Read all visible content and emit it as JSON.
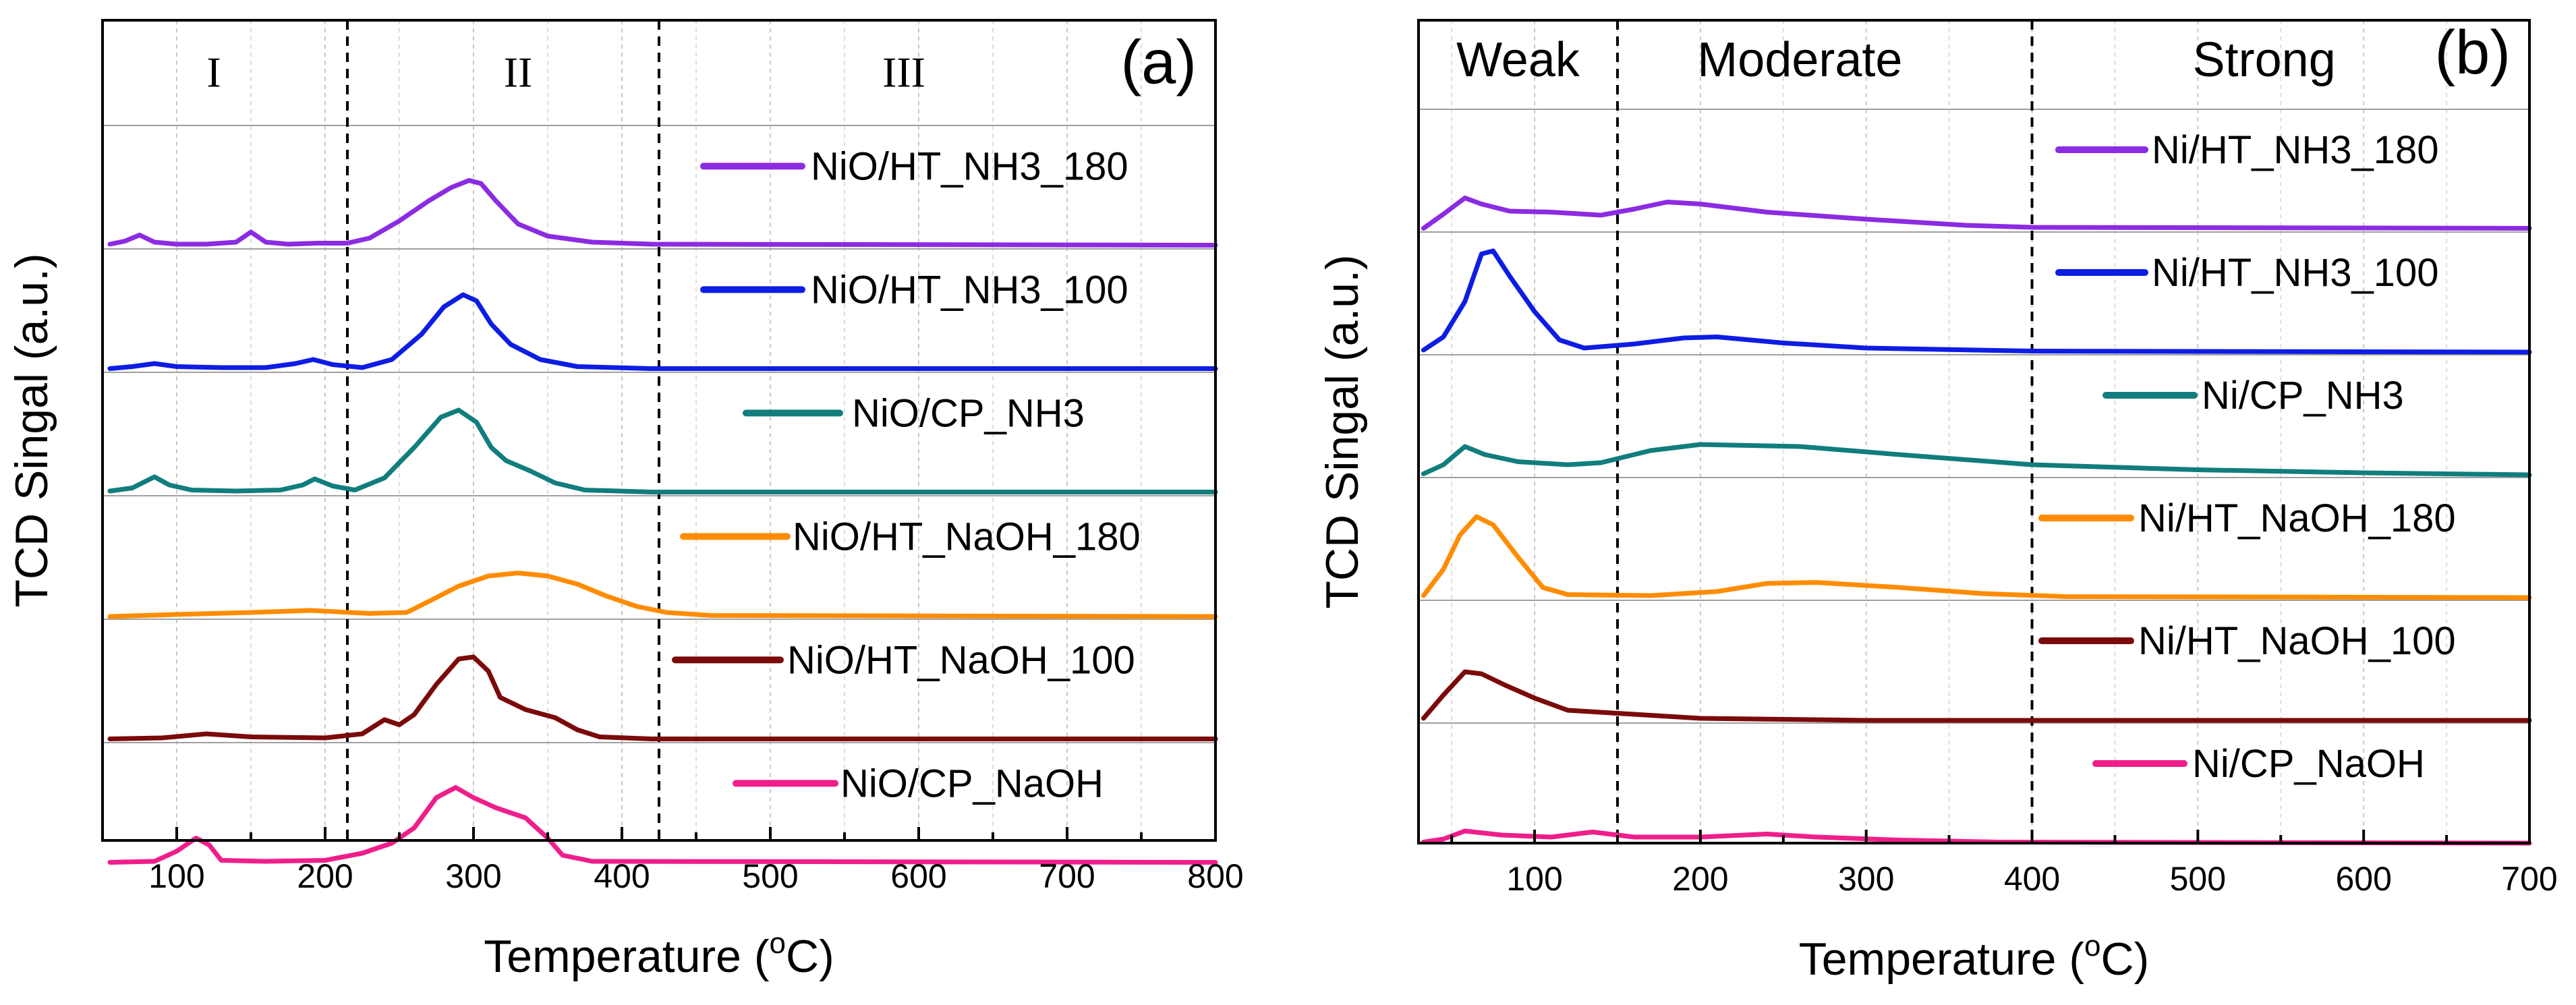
{
  "chart_data": [
    {
      "type": "line",
      "panel_label": "(a)",
      "xlabel_main": "Temperature (",
      "xlabel_sup": "o",
      "xlabel_tail": "C)",
      "ylabel": "TCD Singal (a.u.)",
      "xlim": [
        50,
        800
      ],
      "xticks": [
        100,
        200,
        300,
        400,
        500,
        600,
        700,
        800
      ],
      "grid": true,
      "region_lines": [
        215,
        425
      ],
      "regions": [
        {
          "label": "I",
          "x": 125
        },
        {
          "label": "II",
          "x": 330
        },
        {
          "label": "III",
          "x": 590
        }
      ],
      "colors": [
        "#8b2be2",
        "#0d1de3",
        "#117d7d",
        "#ff8c00",
        "#7b0a0a",
        "#ef1e8b"
      ],
      "series": [
        {
          "name": "NiO/HT_NH3_180",
          "color": "#8b2be2",
          "points": [
            [
              55,
              0.02
            ],
            [
              65,
              0.05
            ],
            [
              75,
              0.11
            ],
            [
              85,
              0.04
            ],
            [
              100,
              0.02
            ],
            [
              120,
              0.02
            ],
            [
              140,
              0.04
            ],
            [
              150,
              0.14
            ],
            [
              160,
              0.04
            ],
            [
              175,
              0.02
            ],
            [
              195,
              0.03
            ],
            [
              215,
              0.03
            ],
            [
              230,
              0.08
            ],
            [
              250,
              0.25
            ],
            [
              270,
              0.45
            ],
            [
              285,
              0.58
            ],
            [
              297,
              0.65
            ],
            [
              305,
              0.62
            ],
            [
              315,
              0.45
            ],
            [
              330,
              0.22
            ],
            [
              350,
              0.1
            ],
            [
              380,
              0.04
            ],
            [
              420,
              0.02
            ],
            [
              800,
              0.01
            ]
          ]
        },
        {
          "name": "NiO/HT_NH3_100",
          "color": "#0d1de3",
          "points": [
            [
              55,
              0.01
            ],
            [
              70,
              0.03
            ],
            [
              85,
              0.06
            ],
            [
              100,
              0.03
            ],
            [
              130,
              0.02
            ],
            [
              160,
              0.02
            ],
            [
              180,
              0.06
            ],
            [
              192,
              0.1
            ],
            [
              205,
              0.05
            ],
            [
              225,
              0.02
            ],
            [
              245,
              0.1
            ],
            [
              265,
              0.35
            ],
            [
              280,
              0.62
            ],
            [
              293,
              0.74
            ],
            [
              302,
              0.68
            ],
            [
              312,
              0.45
            ],
            [
              325,
              0.25
            ],
            [
              345,
              0.1
            ],
            [
              370,
              0.03
            ],
            [
              420,
              0.01
            ],
            [
              800,
              0.01
            ]
          ]
        },
        {
          "name": "NiO/CP_NH3",
          "color": "#117d7d",
          "points": [
            [
              55,
              0.02
            ],
            [
              70,
              0.05
            ],
            [
              85,
              0.16
            ],
            [
              95,
              0.08
            ],
            [
              110,
              0.03
            ],
            [
              140,
              0.02
            ],
            [
              170,
              0.03
            ],
            [
              185,
              0.08
            ],
            [
              193,
              0.14
            ],
            [
              205,
              0.07
            ],
            [
              220,
              0.03
            ],
            [
              240,
              0.15
            ],
            [
              260,
              0.45
            ],
            [
              278,
              0.75
            ],
            [
              290,
              0.82
            ],
            [
              302,
              0.7
            ],
            [
              312,
              0.45
            ],
            [
              322,
              0.32
            ],
            [
              338,
              0.22
            ],
            [
              355,
              0.1
            ],
            [
              375,
              0.03
            ],
            [
              420,
              0.01
            ],
            [
              800,
              0.01
            ]
          ]
        },
        {
          "name": "NiO/HT_NaOH_180",
          "color": "#ff8c00",
          "points": [
            [
              55,
              0.0
            ],
            [
              100,
              0.02
            ],
            [
              150,
              0.04
            ],
            [
              190,
              0.06
            ],
            [
              230,
              0.03
            ],
            [
              255,
              0.04
            ],
            [
              270,
              0.15
            ],
            [
              290,
              0.3
            ],
            [
              310,
              0.4
            ],
            [
              330,
              0.43
            ],
            [
              350,
              0.4
            ],
            [
              370,
              0.32
            ],
            [
              390,
              0.2
            ],
            [
              410,
              0.1
            ],
            [
              430,
              0.04
            ],
            [
              460,
              0.01
            ],
            [
              800,
              0.0
            ]
          ]
        },
        {
          "name": "NiO/HT_NaOH_100",
          "color": "#7b0a0a",
          "points": [
            [
              55,
              0.01
            ],
            [
              90,
              0.02
            ],
            [
              120,
              0.06
            ],
            [
              150,
              0.03
            ],
            [
              200,
              0.02
            ],
            [
              225,
              0.06
            ],
            [
              240,
              0.2
            ],
            [
              250,
              0.15
            ],
            [
              260,
              0.25
            ],
            [
              275,
              0.55
            ],
            [
              290,
              0.8
            ],
            [
              300,
              0.82
            ],
            [
              310,
              0.68
            ],
            [
              318,
              0.42
            ],
            [
              335,
              0.3
            ],
            [
              355,
              0.22
            ],
            [
              370,
              0.1
            ],
            [
              385,
              0.03
            ],
            [
              420,
              0.01
            ],
            [
              800,
              0.01
            ]
          ]
        },
        {
          "name": "NiO/CP_NaOH",
          "color": "#ef1e8b",
          "points": [
            [
              55,
              0.01
            ],
            [
              85,
              0.02
            ],
            [
              100,
              0.12
            ],
            [
              113,
              0.25
            ],
            [
              122,
              0.18
            ],
            [
              130,
              0.03
            ],
            [
              160,
              0.02
            ],
            [
              200,
              0.03
            ],
            [
              225,
              0.1
            ],
            [
              245,
              0.2
            ],
            [
              260,
              0.35
            ],
            [
              275,
              0.65
            ],
            [
              288,
              0.75
            ],
            [
              300,
              0.65
            ],
            [
              315,
              0.55
            ],
            [
              335,
              0.45
            ],
            [
              350,
              0.25
            ],
            [
              360,
              0.08
            ],
            [
              380,
              0.02
            ],
            [
              800,
              0.01
            ]
          ]
        }
      ]
    },
    {
      "type": "line",
      "panel_label": "(b)",
      "xlabel_main": "Temperature (",
      "xlabel_sup": "o",
      "xlabel_tail": "C)",
      "ylabel": "TCD Singal (a.u.)",
      "xlim": [
        30,
        700
      ],
      "xticks": [
        100,
        200,
        300,
        400,
        500,
        600,
        700
      ],
      "grid": true,
      "region_lines": [
        150,
        400
      ],
      "regions": [
        {
          "label": "Weak",
          "x": 90
        },
        {
          "label": "Moderate",
          "x": 260
        },
        {
          "label": "Strong",
          "x": 540
        }
      ],
      "colors": [
        "#8b2be2",
        "#0d1de3",
        "#117d7d",
        "#ff8c00",
        "#7b0a0a",
        "#ef1e8b"
      ],
      "series": [
        {
          "name": "Ni/HT_NH3_180",
          "color": "#8b2be2",
          "points": [
            [
              33,
              0.01
            ],
            [
              45,
              0.15
            ],
            [
              58,
              0.31
            ],
            [
              68,
              0.25
            ],
            [
              85,
              0.18
            ],
            [
              110,
              0.17
            ],
            [
              140,
              0.14
            ],
            [
              160,
              0.2
            ],
            [
              180,
              0.27
            ],
            [
              200,
              0.25
            ],
            [
              240,
              0.17
            ],
            [
              300,
              0.1
            ],
            [
              360,
              0.04
            ],
            [
              400,
              0.02
            ],
            [
              700,
              0.01
            ]
          ]
        },
        {
          "name": "Ni/HT_NH3_100",
          "color": "#0d1de3",
          "points": [
            [
              33,
              0.02
            ],
            [
              45,
              0.15
            ],
            [
              58,
              0.5
            ],
            [
              68,
              0.97
            ],
            [
              75,
              1.0
            ],
            [
              85,
              0.75
            ],
            [
              100,
              0.4
            ],
            [
              115,
              0.12
            ],
            [
              130,
              0.04
            ],
            [
              160,
              0.08
            ],
            [
              190,
              0.14
            ],
            [
              210,
              0.15
            ],
            [
              250,
              0.09
            ],
            [
              300,
              0.04
            ],
            [
              400,
              0.01
            ],
            [
              700,
              0.0
            ]
          ]
        },
        {
          "name": "Ni/CP_NH3",
          "color": "#117d7d",
          "points": [
            [
              33,
              0.01
            ],
            [
              45,
              0.1
            ],
            [
              58,
              0.28
            ],
            [
              70,
              0.2
            ],
            [
              90,
              0.13
            ],
            [
              120,
              0.1
            ],
            [
              140,
              0.12
            ],
            [
              170,
              0.24
            ],
            [
              200,
              0.3
            ],
            [
              260,
              0.28
            ],
            [
              320,
              0.2
            ],
            [
              400,
              0.1
            ],
            [
              500,
              0.05
            ],
            [
              600,
              0.02
            ],
            [
              700,
              0.0
            ]
          ]
        },
        {
          "name": "Ni/HT_NaOH_180",
          "color": "#ff8c00",
          "points": [
            [
              33,
              0.02
            ],
            [
              45,
              0.28
            ],
            [
              55,
              0.62
            ],
            [
              65,
              0.8
            ],
            [
              75,
              0.72
            ],
            [
              90,
              0.4
            ],
            [
              105,
              0.1
            ],
            [
              120,
              0.03
            ],
            [
              170,
              0.02
            ],
            [
              210,
              0.06
            ],
            [
              240,
              0.14
            ],
            [
              270,
              0.15
            ],
            [
              320,
              0.1
            ],
            [
              370,
              0.04
            ],
            [
              420,
              0.01
            ],
            [
              700,
              0.0
            ]
          ]
        },
        {
          "name": "Ni/HT_NaOH_100",
          "color": "#7b0a0a",
          "points": [
            [
              33,
              0.02
            ],
            [
              45,
              0.25
            ],
            [
              58,
              0.48
            ],
            [
              68,
              0.46
            ],
            [
              82,
              0.35
            ],
            [
              100,
              0.22
            ],
            [
              120,
              0.1
            ],
            [
              160,
              0.06
            ],
            [
              200,
              0.02
            ],
            [
              300,
              0.0
            ],
            [
              700,
              0.0
            ]
          ]
        },
        {
          "name": "Ni/CP_NaOH",
          "color": "#ef1e8b",
          "points": [
            [
              33,
              0.01
            ],
            [
              45,
              0.04
            ],
            [
              58,
              0.12
            ],
            [
              80,
              0.08
            ],
            [
              110,
              0.06
            ],
            [
              135,
              0.11
            ],
            [
              160,
              0.06
            ],
            [
              200,
              0.06
            ],
            [
              240,
              0.09
            ],
            [
              270,
              0.06
            ],
            [
              320,
              0.03
            ],
            [
              380,
              0.01
            ],
            [
              700,
              0.0
            ]
          ]
        }
      ]
    }
  ]
}
